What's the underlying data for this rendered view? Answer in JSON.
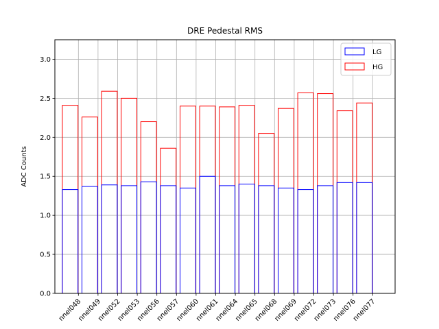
{
  "chart_data": {
    "type": "bar",
    "title": "DRE Pedestal RMS",
    "xlabel": "",
    "ylabel": "ADC Counts",
    "ylim": [
      0,
      3.25
    ],
    "yticks": [
      "0.0",
      "0.5",
      "1.0",
      "1.5",
      "2.0",
      "2.5",
      "3.0"
    ],
    "grid": true,
    "legend_position": "top-right",
    "categories": [
      "nnel048",
      "nnel049",
      "nnel052",
      "nnel053",
      "nnel056",
      "nnel057",
      "nnel060",
      "nnel061",
      "nnel064",
      "nnel065",
      "nnel068",
      "nnel069",
      "nnel072",
      "nnel073",
      "nnel076",
      "nnel077"
    ],
    "series": [
      {
        "name": "LG",
        "color": "#0000ff",
        "values": [
          1.33,
          1.37,
          1.39,
          1.38,
          1.43,
          1.38,
          1.35,
          1.5,
          1.38,
          1.4,
          1.38,
          1.35,
          1.33,
          1.38,
          1.42,
          1.42
        ]
      },
      {
        "name": "HG",
        "color": "#ff0000",
        "values": [
          2.41,
          2.26,
          2.59,
          2.5,
          2.2,
          1.86,
          2.4,
          2.4,
          2.39,
          2.41,
          2.05,
          2.37,
          2.57,
          2.56,
          2.34,
          2.44
        ]
      }
    ]
  }
}
